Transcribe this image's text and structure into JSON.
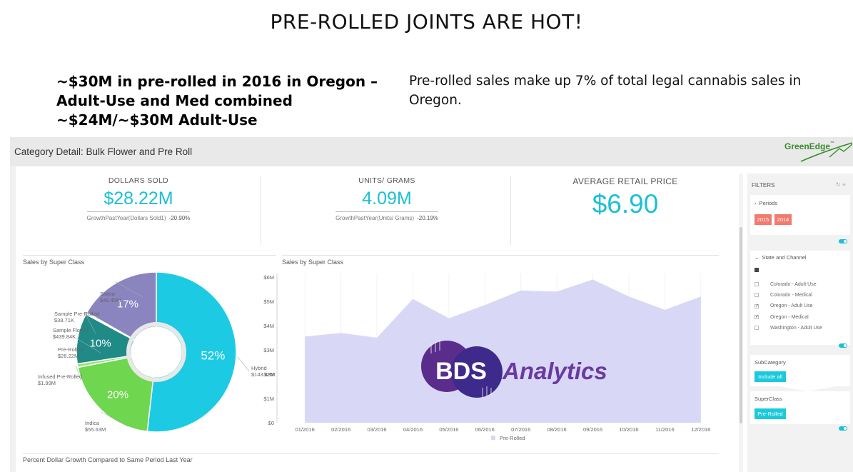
{
  "slide": {
    "title": "PRE-ROLLED JOINTS ARE HOT!",
    "left_lines": [
      "~$30M in pre-rolled in 2016 in Oregon –",
      "Adult-Use and Med combined",
      "~$24M/~$30M Adult-Use"
    ],
    "right_text": "Pre-rolled sales make up 7% of total legal cannabis sales in Oregon."
  },
  "dashboard": {
    "header_title": "Category Detail: Bulk Flower and Pre Roll",
    "logo_text": "GreenEdge",
    "logo_tm": "™",
    "kpis": [
      {
        "label": "DOLLARS SOLD",
        "value": "$28.22M",
        "growth_label": "GrowthPastYear(Dollars Sold1)",
        "growth_value": "-20.90%"
      },
      {
        "label": "UNITS/ GRAMS",
        "value": "4.09M",
        "growth_label": "GrowthPastYear(Units/ Grams)",
        "growth_value": "-20.19%"
      },
      {
        "label": "AVERAGE RETAIL PRICE",
        "value": "$6.90"
      }
    ],
    "donut_title": "Sales by Super Class",
    "area_title": "Sales by Super Class",
    "bottom_title": "Percent Dollar Growth Compared to Same Period Last Year",
    "watermark": {
      "initials": "BDS",
      "word": "Analytics"
    }
  },
  "filters": {
    "title": "FILTERS",
    "periods": {
      "label": "Periods",
      "chips": [
        "2015",
        "2014"
      ]
    },
    "state_channel": {
      "label": "State and Channel",
      "options": [
        {
          "label": "Colorado - Adult Use",
          "checked": false
        },
        {
          "label": "Colorado - Medical",
          "checked": false
        },
        {
          "label": "Oregon - Adult Use",
          "checked": true
        },
        {
          "label": "Oregon - Medical",
          "checked": true
        },
        {
          "label": "Washington - Adult Use",
          "checked": false
        }
      ]
    },
    "subcategory": {
      "label": "SubCategory",
      "chip": "Include all"
    },
    "superclass": {
      "label": "SuperClass",
      "chip": "Pre-Rolled"
    }
  },
  "chart_data": [
    {
      "type": "pie",
      "title": "Sales by Super Class",
      "slices": [
        {
          "name": "Hybrid",
          "value": 143.43,
          "label": "$143.43M",
          "pct_label": "52%",
          "color": "#1ccbe3"
        },
        {
          "name": "Indica",
          "value": 55.63,
          "label": "$55.63M",
          "pct_label": "20%",
          "color": "#6fd64f"
        },
        {
          "name": "Infused Pre-Rolled",
          "value": 1.99,
          "label": "$1.99M",
          "pct_label": "",
          "color": "#9be07a"
        },
        {
          "name": "Pre-Rolled",
          "value": 28.22,
          "label": "$28.22M",
          "pct_label": "10%",
          "color": "#1f8a86"
        },
        {
          "name": "Sample Flower",
          "value": 0.43984,
          "label": "$439.84K",
          "pct_label": "",
          "color": "#5aa0a8"
        },
        {
          "name": "Sample Pre-Rolled",
          "value": 0.03871,
          "label": "$38.71K",
          "pct_label": "",
          "color": "#3fb0c0"
        },
        {
          "name": "Sativa",
          "value": 46.45,
          "label": "$46.45M",
          "pct_label": "17%",
          "color": "#8a84bf"
        }
      ],
      "hole": true
    },
    {
      "type": "area",
      "title": "Sales by Super Class",
      "x": [
        "01/2016",
        "02/2016",
        "03/2016",
        "04/2016",
        "05/2016",
        "06/2016",
        "07/2016",
        "08/2016",
        "09/2016",
        "10/2016",
        "11/2016",
        "12/2016"
      ],
      "series": [
        {
          "name": "Pre-Rolled",
          "values": [
            3.55,
            3.7,
            3.5,
            5.1,
            4.3,
            4.85,
            5.45,
            5.4,
            5.9,
            5.2,
            4.65,
            5.2
          ],
          "color": "#d8d8f6"
        }
      ],
      "y_ticks": [
        "$0",
        "$1M",
        "$2M",
        "$3M",
        "$4M",
        "$5M",
        "$6M"
      ],
      "ylim": [
        0,
        6
      ],
      "legend": "bottom",
      "grid": true
    }
  ]
}
